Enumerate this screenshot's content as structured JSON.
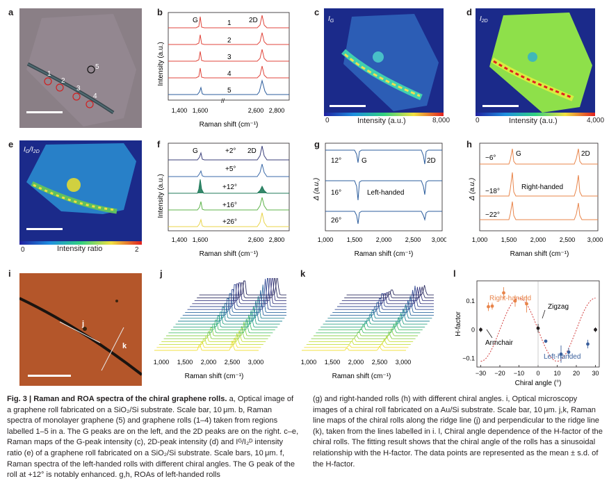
{
  "panels": {
    "a": {
      "label": "a",
      "markers": [
        "1",
        "2",
        "3",
        "4",
        "5"
      ]
    },
    "b": {
      "label": "b",
      "ylabel": "Intensity (a.u.)",
      "xlabel": "Raman shift (cm⁻¹)",
      "peak_left": "G",
      "peak_right": "2D",
      "xticks": [
        "1,400",
        "1,600",
        "2,600",
        "2,800"
      ],
      "traces": [
        "1",
        "2",
        "3",
        "4",
        "5"
      ]
    },
    "c": {
      "label": "c",
      "map_label": "I",
      "map_sub": "G",
      "cbar_label": "Intensity (a.u.)",
      "cbar_min": "0",
      "cbar_max": "8,000"
    },
    "d": {
      "label": "d",
      "map_label": "I",
      "map_sub": "2D",
      "cbar_max": "4,000"
    },
    "e": {
      "label": "e",
      "map_label": "I",
      "map_sub": "G",
      "map_sub2": "2D",
      "cbar_label": "Intensity ratio",
      "cbar_min": "0",
      "cbar_max": "2"
    },
    "f": {
      "label": "f",
      "ylabel": "Intensity (a.u.)",
      "xlabel": "Raman shift (cm⁻¹)",
      "peak_left": "G",
      "peak_right": "2D",
      "xticks": [
        "1,400",
        "1,600",
        "2,600",
        "2,800"
      ],
      "traces": [
        "+2°",
        "+5°",
        "+12°",
        "+16°",
        "+26°"
      ]
    },
    "g": {
      "label": "g",
      "ylabel": "Δ (a.u.)",
      "xlabel": "Raman shift (cm⁻¹)",
      "xticks": [
        "1,000",
        "1,500",
        "2,000",
        "2,500",
        "3,000"
      ],
      "traces": [
        "12°",
        "16°",
        "26°"
      ],
      "peak_left": "G",
      "peak_right": "2D",
      "handed": "Left-handed"
    },
    "h": {
      "label": "h",
      "ylabel": "Δ (a.u.)",
      "xlabel": "Raman shift (cm⁻¹)",
      "xticks": [
        "1,000",
        "1,500",
        "2,000",
        "2,500",
        "3,000"
      ],
      "traces": [
        "−6°",
        "−18°",
        "−22°"
      ],
      "peak_left": "G",
      "peak_right": "2D",
      "handed": "Right-handed"
    },
    "i": {
      "label": "i",
      "line_j": "j",
      "line_k": "k"
    },
    "j": {
      "label": "j",
      "xlabel": "Raman shift (cm⁻¹)",
      "xticks": [
        "1,000",
        "1,500",
        "2,000",
        "2,500",
        "3,000"
      ]
    },
    "k": {
      "label": "k",
      "xlabel": "Raman shift (cm⁻¹)",
      "xticks": [
        "1,000",
        "1,500",
        "2,000",
        "2,500",
        "3,000"
      ]
    },
    "l": {
      "label": "l",
      "ylabel": "H-factor",
      "xlabel": "Chiral angle (°)",
      "xticks": [
        "−30",
        "−20",
        "−10",
        "0",
        "10",
        "20",
        "30"
      ],
      "yticks": [
        "0.1",
        "0",
        "−0.1"
      ],
      "right": "Right-handed",
      "left": "Left-handed",
      "zigzag": "Zigzag",
      "armchair": "Armchair"
    }
  },
  "chart_data": [
    {
      "type": "scatter",
      "title": "",
      "xlabel": "Chiral angle (°)",
      "ylabel": "H-factor",
      "xlim": [
        -32,
        32
      ],
      "ylim": [
        -0.13,
        0.17
      ],
      "series": [
        {
          "name": "Right-handed",
          "x": [
            -26,
            -24,
            -18,
            -12,
            -6
          ],
          "y": [
            0.08,
            0.082,
            0.128,
            0.1,
            0.09
          ],
          "err": [
            0.015,
            0.012,
            0.02,
            0.02,
            0.03
          ],
          "color": "#e8844a"
        },
        {
          "name": "Left-handed",
          "x": [
            4,
            12,
            16,
            26
          ],
          "y": [
            -0.04,
            -0.085,
            -0.078,
            -0.05
          ],
          "err": [
            0.005,
            0.03,
            0.015,
            0.015
          ],
          "color": "#3a5f9c"
        },
        {
          "name": "Zigzag",
          "x": [
            0
          ],
          "y": [
            0.005
          ],
          "err": [
            0.015
          ],
          "color": "#231f20"
        },
        {
          "name": "Armchair",
          "x": [
            -30,
            30
          ],
          "y": [
            0.0,
            0.0
          ],
          "err": [
            0.008,
            0.008
          ],
          "color": "#231f20"
        }
      ]
    }
  ],
  "caption": {
    "fig": "Fig. 3 | Raman and ROA spectra of the chiral graphene rolls.",
    "left_1": "a, Optical image of a graphene roll fabricated on a SiO₂/Si substrate. Scale bar, 10 μm. b, Raman spectra of monolayer graphene (5) and graphene rolls (1–4) taken from regions labelled 1–5 in a. The G peaks are on the left, and the 2D peaks are on the right. c–e, Raman maps of the G-peak intensity (c), 2D-peak intensity (d) and Iᴳ/I₂ᴰ intensity ratio (e) of a graphene roll fabricated on a SiO₂/Si substrate. Scale bars, 10 μm. f, Raman spectra of the left-handed rolls with different chiral angles. The G peak of the roll at +12° is notably enhanced. g,h, ROAs of left-handed rolls",
    "right_1": "(g) and right-handed rolls (h) with different chiral angles. i, Optical microscopy images of a chiral roll fabricated on a Au/Si substrate. Scale bar, 10 μm. j,k, Raman line maps of the chiral rolls along the ridge line (j) and perpendicular to the ridge line (k), taken from the lines labelled in i. l, Chiral angle dependence of the H-factor of the chiral rolls. The fitting result shows that the chiral angle of the rolls has a sinusoidal relationship with the H-factor. The data points are represented as the mean ± s.d. of the H-factor."
  }
}
